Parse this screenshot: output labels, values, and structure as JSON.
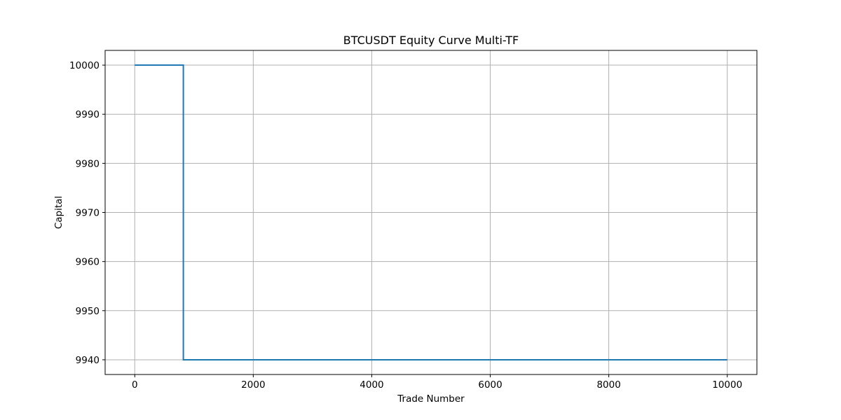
{
  "chart_data": {
    "type": "line",
    "title": "BTCUSDT Equity Curve Multi-TF",
    "xlabel": "Trade Number",
    "ylabel": "Capital",
    "xlim": [
      -500,
      10500
    ],
    "ylim": [
      9937,
      10003
    ],
    "x_ticks": [
      0,
      2000,
      4000,
      6000,
      8000,
      10000
    ],
    "y_ticks": [
      9940,
      9950,
      9960,
      9970,
      9980,
      9990,
      10000
    ],
    "grid": true,
    "legend": "none",
    "series": [
      {
        "color": "#1f77b4",
        "points": [
          [
            0,
            10000
          ],
          [
            820,
            10000
          ],
          [
            820,
            9940
          ],
          [
            10000,
            9940
          ]
        ]
      }
    ]
  }
}
